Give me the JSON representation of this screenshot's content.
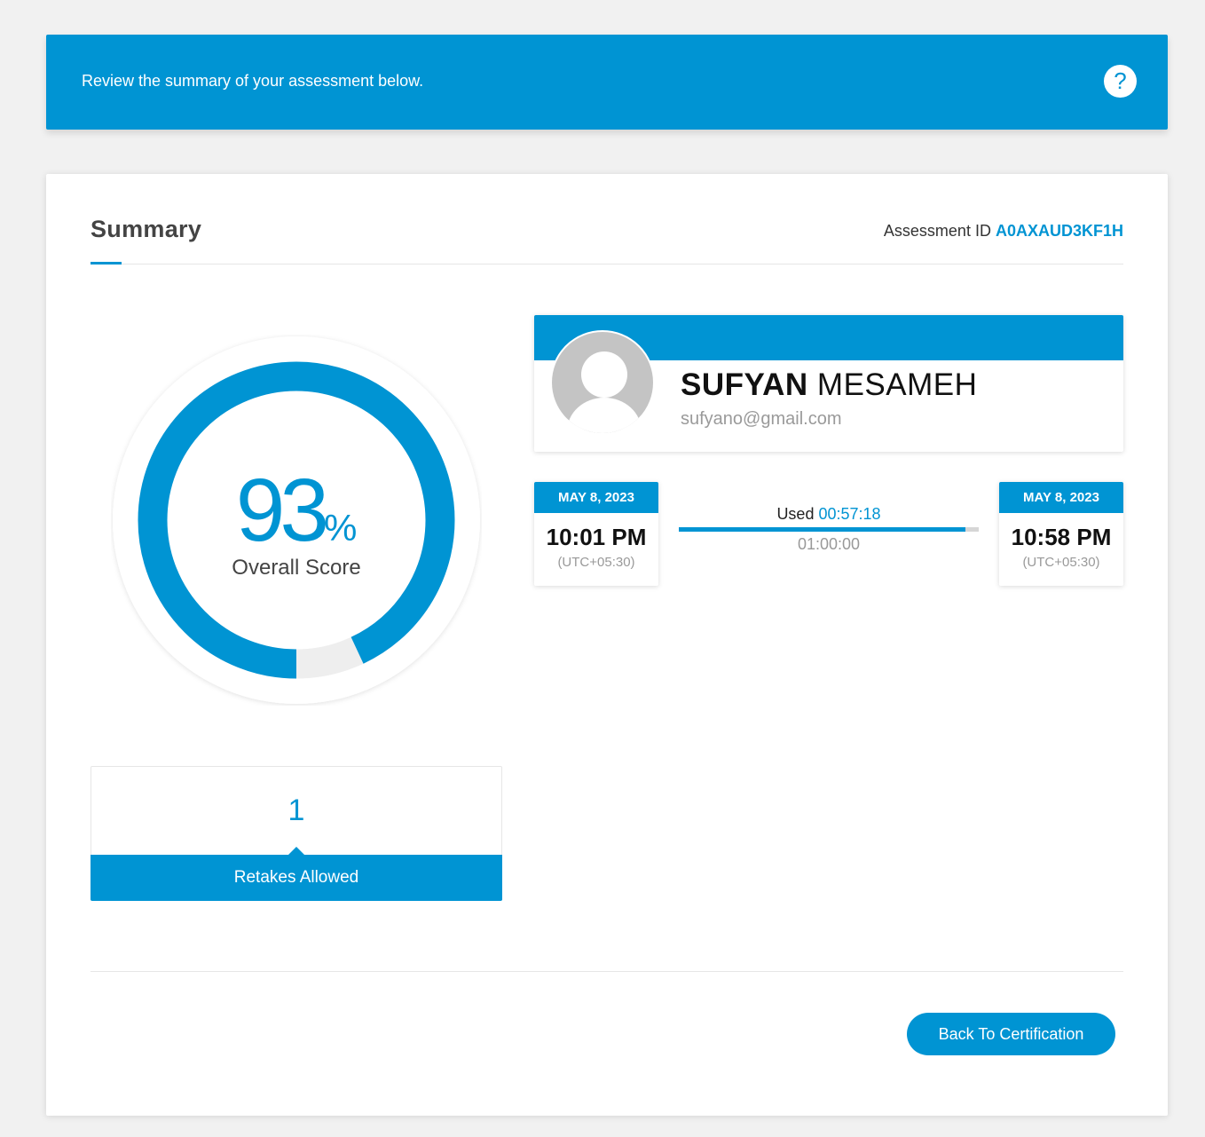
{
  "banner": {
    "text": "Review the summary of your assessment below.",
    "help_icon": "?"
  },
  "summary": {
    "title": "Summary",
    "assessment_id_label": "Assessment ID",
    "assessment_id": "A0AXAUD3KF1H"
  },
  "score": {
    "value": "93",
    "suffix": "%",
    "label": "Overall Score",
    "fraction": 0.93
  },
  "retakes": {
    "count": "1",
    "label": "Retakes Allowed"
  },
  "profile": {
    "first_name": "SUFYAN",
    "last_name": "MESAMEH",
    "email": "sufyano@gmail.com"
  },
  "start": {
    "date": "MAY 8, 2023",
    "time": "10:01 PM",
    "tz": "(UTC+05:30)"
  },
  "end": {
    "date": "MAY 8, 2023",
    "time": "10:58 PM",
    "tz": "(UTC+05:30)"
  },
  "duration": {
    "used_label": "Used",
    "used": "00:57:18",
    "total": "01:00:00",
    "fraction": 0.955
  },
  "actions": {
    "back_label": "Back To Certification"
  },
  "colors": {
    "accent": "#0094d3",
    "background": "#f1f1f1",
    "track": "#eeeeee"
  }
}
